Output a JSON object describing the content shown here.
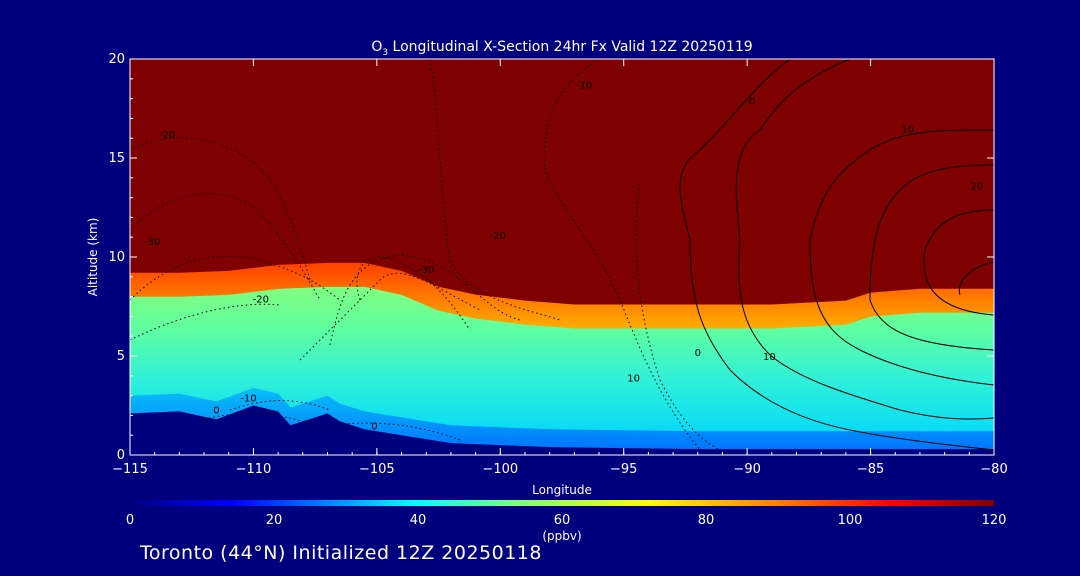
{
  "chart_data": {
    "type": "heatmap",
    "title_prefix": "O",
    "title_subscript": "3",
    "title_rest": " Longitudinal X-Section 24hr  Fx Valid 12Z 20250119",
    "xlabel": "Longitude",
    "ylabel": "Altitude (km)",
    "xlim": [
      -115,
      -80
    ],
    "ylim": [
      0,
      20
    ],
    "x_ticks": [
      -115,
      -110,
      -105,
      -100,
      -95,
      -90,
      -85,
      -80
    ],
    "x_tick_labels": [
      "−115",
      "−110",
      "−105",
      "−100",
      "−95",
      "−90",
      "−85",
      "−80"
    ],
    "y_ticks": [
      0,
      5,
      10,
      15,
      20
    ],
    "y_tick_labels": [
      "0",
      "5",
      "10",
      "15",
      "20"
    ],
    "colorbar": {
      "label": "(ppbv)",
      "range": [
        0,
        120
      ],
      "ticks": [
        0,
        20,
        40,
        60,
        80,
        100,
        120
      ],
      "tick_labels": [
        "0",
        "20",
        "40",
        "60",
        "80",
        "100",
        "120"
      ]
    },
    "tropopause_height_km": {
      "lon": [
        -115,
        -113,
        -111,
        -109,
        -107,
        -105.5,
        -104,
        -102.5,
        -101,
        -99,
        -97,
        -95,
        -92,
        -89,
        -86,
        -85,
        -83,
        -80
      ],
      "alt": [
        9.2,
        9.2,
        9.3,
        9.6,
        9.7,
        9.7,
        9.3,
        8.5,
        8.1,
        7.8,
        7.6,
        7.6,
        7.6,
        7.6,
        7.8,
        8.2,
        8.4,
        8.4
      ]
    },
    "terrain_height_km": {
      "lon": [
        -115,
        -113,
        -111.5,
        -110,
        -109,
        -108.5,
        -107.5,
        -107,
        -106.5,
        -105.5,
        -104.5,
        -103.5,
        -102,
        -100,
        -98,
        -95,
        -92,
        -89,
        -86,
        -83,
        -80
      ],
      "alt": [
        2.1,
        2.2,
        1.8,
        2.5,
        2.2,
        1.5,
        1.9,
        2.1,
        1.7,
        1.3,
        1.1,
        0.9,
        0.6,
        0.5,
        0.4,
        0.35,
        0.3,
        0.3,
        0.3,
        0.3,
        0.3
      ]
    },
    "contour_labels": [
      {
        "lon": -113.5,
        "alt": 16.0,
        "text": "-20"
      },
      {
        "lon": -96.6,
        "alt": 18.5,
        "text": "-10"
      },
      {
        "lon": -114.1,
        "alt": 10.6,
        "text": "-30"
      },
      {
        "lon": -100.1,
        "alt": 10.9,
        "text": "-20"
      },
      {
        "lon": -103.0,
        "alt": 9.2,
        "text": "-30"
      },
      {
        "lon": -109.7,
        "alt": 7.7,
        "text": "-20"
      },
      {
        "lon": -110.2,
        "alt": 2.7,
        "text": "-10"
      },
      {
        "lon": -111.5,
        "alt": 2.1,
        "text": "0"
      },
      {
        "lon": -105.1,
        "alt": 1.3,
        "text": "0"
      },
      {
        "lon": -94.6,
        "alt": 3.7,
        "text": "10"
      },
      {
        "lon": -92.0,
        "alt": 5.0,
        "text": "0"
      },
      {
        "lon": -89.1,
        "alt": 4.8,
        "text": "10"
      },
      {
        "lon": -89.8,
        "alt": 17.7,
        "text": "0"
      },
      {
        "lon": -83.5,
        "alt": 16.3,
        "text": "10"
      },
      {
        "lon": -80.7,
        "alt": 13.4,
        "text": "20"
      }
    ],
    "footer": "Toronto (44°N) Initialized 12Z 20250118"
  }
}
